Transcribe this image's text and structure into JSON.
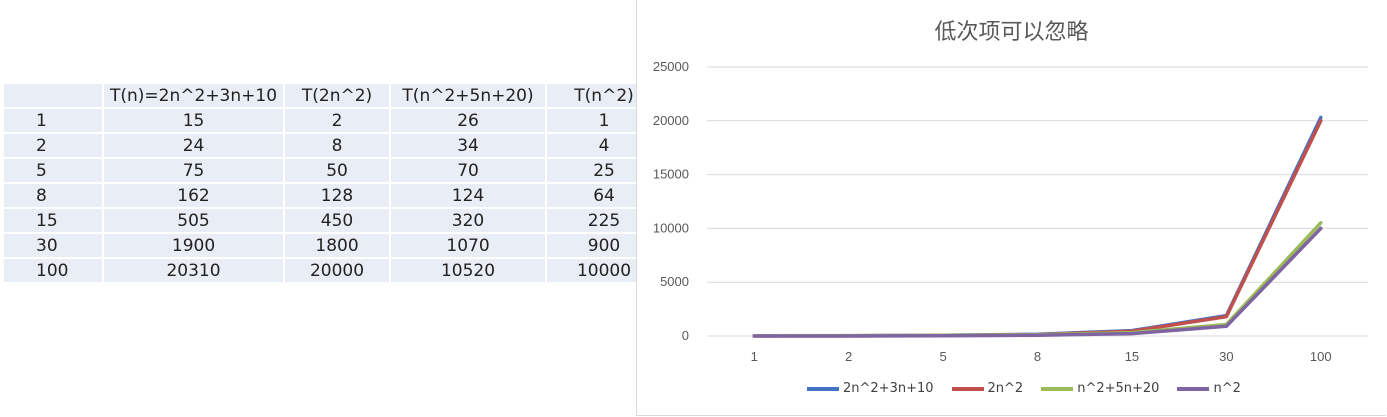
{
  "table": {
    "headers": [
      "",
      "T(n)=2n^2+3n+10",
      "T(2n^2)",
      "T(n^2+5n+20)",
      "T(n^2)"
    ],
    "rows": [
      [
        "1",
        "15",
        "2",
        "26",
        "1"
      ],
      [
        "2",
        "24",
        "8",
        "34",
        "4"
      ],
      [
        "5",
        "75",
        "50",
        "70",
        "25"
      ],
      [
        "8",
        "162",
        "128",
        "124",
        "64"
      ],
      [
        "15",
        "505",
        "450",
        "320",
        "225"
      ],
      [
        "30",
        "1900",
        "1800",
        "1070",
        "900"
      ],
      [
        "100",
        "20310",
        "20000",
        "10520",
        "10000"
      ]
    ]
  },
  "chart_data": {
    "type": "line",
    "title": "低次项可以忽略",
    "categories": [
      "1",
      "2",
      "5",
      "8",
      "15",
      "30",
      "100"
    ],
    "ylim": [
      0,
      25000
    ],
    "yticks": [
      "0",
      "5000",
      "10000",
      "15000",
      "20000",
      "25000"
    ],
    "grid": true,
    "legend_position": "bottom",
    "series": [
      {
        "name": "2n^2+3n+10",
        "values": [
          15,
          24,
          75,
          162,
          505,
          1900,
          20310
        ],
        "color": "#4472c4"
      },
      {
        "name": "2n^2",
        "values": [
          2,
          8,
          50,
          128,
          450,
          1800,
          20000
        ],
        "color": "#c0504d"
      },
      {
        "name": "n^2+5n+20",
        "values": [
          26,
          34,
          70,
          124,
          320,
          1070,
          10520
        ],
        "color": "#9bbb59"
      },
      {
        "name": "n^2",
        "values": [
          1,
          4,
          25,
          64,
          225,
          900,
          10000
        ],
        "color": "#8064a2"
      }
    ]
  }
}
